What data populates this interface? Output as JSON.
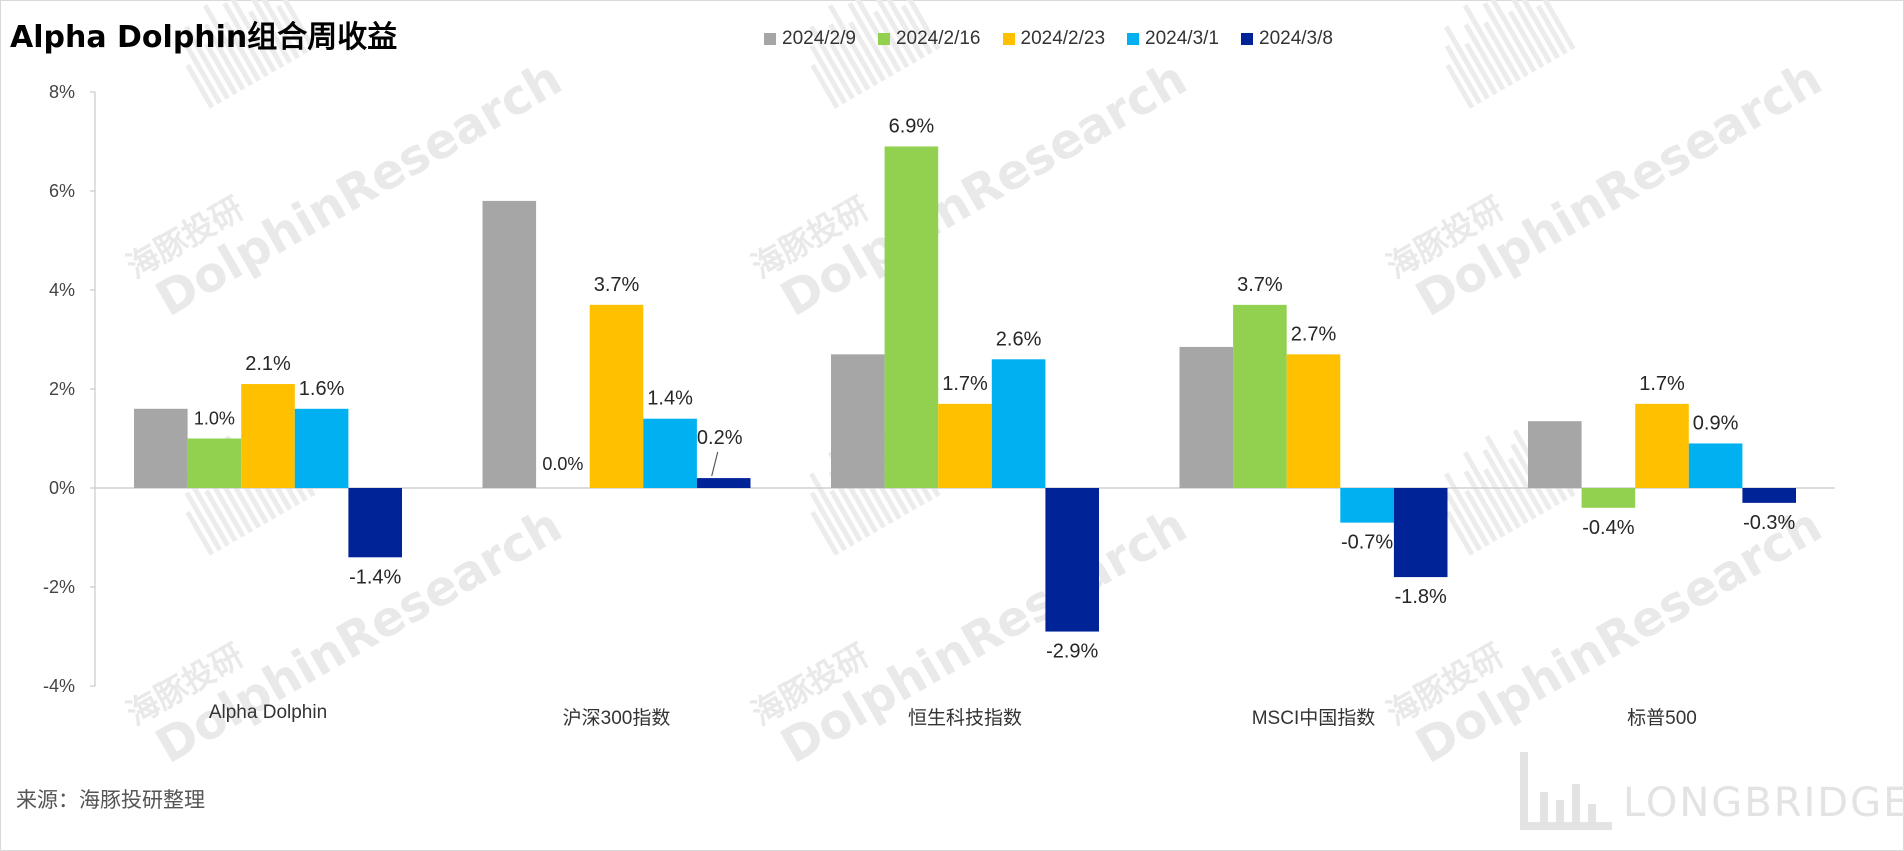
{
  "title": "Alpha Dolphin组合周收益",
  "source": "来源：海豚投研整理",
  "watermark": {
    "cn": "海豚投研",
    "en": "DolphinResearch"
  },
  "brand": {
    "name": "LONGBRIDGE"
  },
  "colors": {
    "axis": "#bfbfbf",
    "label": "#262626"
  },
  "chart_data": {
    "type": "bar",
    "title": "Alpha Dolphin组合周收益",
    "categories": [
      "Alpha Dolphin",
      "沪深300指数",
      "恒生科技指数",
      "MSCI中国指数",
      "标普500"
    ],
    "ylim": [
      -4,
      8
    ],
    "yticks": [
      8,
      6,
      4,
      2,
      0,
      -2,
      -4
    ],
    "ytick_labels": [
      "8%",
      "6%",
      "4%",
      "2%",
      "0%",
      "-2%",
      "-4%"
    ],
    "legend_position": "top-center",
    "grid": false,
    "series": [
      {
        "name": "2024/2/9",
        "color": "#a6a6a6",
        "values": [
          1.6,
          5.8,
          2.7,
          2.85,
          1.35
        ],
        "labels": [
          "",
          "",
          "",
          "",
          ""
        ]
      },
      {
        "name": "2024/2/16",
        "color": "#92d050",
        "values": [
          1.0,
          0.0,
          6.9,
          3.7,
          -0.4
        ],
        "labels": [
          "1.0%",
          "0.0%",
          "6.9%",
          "3.7%",
          "-0.4%"
        ]
      },
      {
        "name": "2024/2/23",
        "color": "#ffc000",
        "values": [
          2.1,
          3.7,
          1.7,
          2.7,
          1.7
        ],
        "labels": [
          "2.1%",
          "3.7%",
          "1.7%",
          "2.7%",
          "1.7%"
        ]
      },
      {
        "name": "2024/3/1",
        "color": "#00b0f0",
        "values": [
          1.6,
          1.4,
          2.6,
          -0.7,
          0.9
        ],
        "labels": [
          "1.6%",
          "1.4%",
          "2.6%",
          "-0.7%",
          "0.9%"
        ]
      },
      {
        "name": "2024/3/8",
        "color": "#002398",
        "values": [
          -1.4,
          0.2,
          -2.9,
          -1.8,
          -0.3
        ],
        "labels": [
          "-1.4%",
          "0.2%",
          "-2.9%",
          "-1.8%",
          "-0.3%"
        ]
      }
    ]
  }
}
